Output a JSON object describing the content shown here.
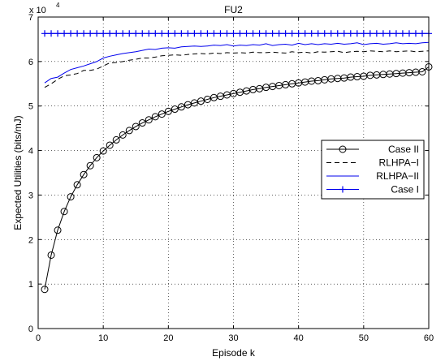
{
  "chart_data": {
    "type": "line",
    "title": "FU2",
    "xlabel": "Episode k",
    "ylabel": "Expected Utilities (bits/mJ)",
    "y_exponent_label": "x 10",
    "y_exponent": "4",
    "xlim": [
      0,
      60
    ],
    "ylim": [
      0,
      7
    ],
    "x_ticks": [
      0,
      10,
      20,
      30,
      40,
      50,
      60
    ],
    "y_ticks": [
      0,
      1,
      2,
      3,
      4,
      5,
      6,
      7
    ],
    "grid": true,
    "legend_position": "right",
    "x": [
      1,
      2,
      3,
      4,
      5,
      6,
      7,
      8,
      9,
      10,
      11,
      12,
      13,
      14,
      15,
      16,
      17,
      18,
      19,
      20,
      21,
      22,
      23,
      24,
      25,
      26,
      27,
      28,
      29,
      30,
      31,
      32,
      33,
      34,
      35,
      36,
      37,
      38,
      39,
      40,
      41,
      42,
      43,
      44,
      45,
      46,
      47,
      48,
      49,
      50,
      51,
      52,
      53,
      54,
      55,
      56,
      57,
      58,
      59,
      60
    ],
    "series": [
      {
        "name": "Case II",
        "style": "black-solid-circle",
        "color": "#000000",
        "values": [
          0.88,
          1.65,
          2.21,
          2.63,
          2.96,
          3.23,
          3.46,
          3.66,
          3.84,
          3.99,
          4.12,
          4.24,
          4.35,
          4.45,
          4.54,
          4.62,
          4.69,
          4.76,
          4.82,
          4.88,
          4.93,
          4.98,
          5.03,
          5.07,
          5.11,
          5.15,
          5.19,
          5.22,
          5.25,
          5.28,
          5.31,
          5.34,
          5.37,
          5.39,
          5.42,
          5.44,
          5.46,
          5.48,
          5.5,
          5.52,
          5.54,
          5.56,
          5.57,
          5.59,
          5.61,
          5.62,
          5.63,
          5.65,
          5.66,
          5.67,
          5.69,
          5.7,
          5.71,
          5.72,
          5.73,
          5.74,
          5.75,
          5.76,
          5.77,
          5.88
        ]
      },
      {
        "name": "RLHPA−I",
        "style": "black-dashed",
        "color": "#000000",
        "values": [
          5.42,
          5.5,
          5.6,
          5.68,
          5.7,
          5.73,
          5.8,
          5.8,
          5.83,
          5.9,
          5.97,
          5.98,
          6.0,
          6.03,
          6.05,
          6.08,
          6.08,
          6.1,
          6.13,
          6.14,
          6.15,
          6.14,
          6.16,
          6.17,
          6.18,
          6.17,
          6.19,
          6.18,
          6.2,
          6.19,
          6.2,
          6.19,
          6.21,
          6.2,
          6.2,
          6.21,
          6.2,
          6.19,
          6.22,
          6.2,
          6.21,
          6.19,
          6.22,
          6.21,
          6.22,
          6.23,
          6.2,
          6.22,
          6.23,
          6.22,
          6.24,
          6.23,
          6.22,
          6.24,
          6.22,
          6.23,
          6.24,
          6.22,
          6.23,
          6.24
        ]
      },
      {
        "name": "RLHPA−II",
        "style": "blue-solid",
        "color": "#0000ee",
        "values": [
          5.52,
          5.62,
          5.65,
          5.74,
          5.82,
          5.86,
          5.9,
          5.95,
          6.0,
          6.08,
          6.12,
          6.15,
          6.18,
          6.2,
          6.22,
          6.25,
          6.28,
          6.27,
          6.3,
          6.31,
          6.3,
          6.33,
          6.34,
          6.35,
          6.34,
          6.35,
          6.37,
          6.36,
          6.38,
          6.35,
          6.37,
          6.36,
          6.38,
          6.37,
          6.4,
          6.36,
          6.38,
          6.39,
          6.37,
          6.41,
          6.38,
          6.4,
          6.38,
          6.4,
          6.39,
          6.41,
          6.39,
          6.4,
          6.42,
          6.38,
          6.4,
          6.41,
          6.39,
          6.4,
          6.42,
          6.4,
          6.41,
          6.4,
          6.42,
          6.43
        ]
      },
      {
        "name": "Case I",
        "style": "blue-solid-plus",
        "color": "#0000ee",
        "values": [
          6.63,
          6.63,
          6.63,
          6.63,
          6.63,
          6.63,
          6.63,
          6.63,
          6.63,
          6.63,
          6.63,
          6.63,
          6.63,
          6.63,
          6.63,
          6.63,
          6.63,
          6.63,
          6.63,
          6.63,
          6.63,
          6.63,
          6.63,
          6.63,
          6.63,
          6.63,
          6.63,
          6.63,
          6.63,
          6.63,
          6.63,
          6.63,
          6.63,
          6.63,
          6.63,
          6.63,
          6.63,
          6.63,
          6.63,
          6.63,
          6.63,
          6.63,
          6.63,
          6.63,
          6.63,
          6.63,
          6.63,
          6.63,
          6.63,
          6.63,
          6.63,
          6.63,
          6.63,
          6.63,
          6.63,
          6.63,
          6.63,
          6.63,
          6.63,
          6.63
        ]
      }
    ]
  }
}
